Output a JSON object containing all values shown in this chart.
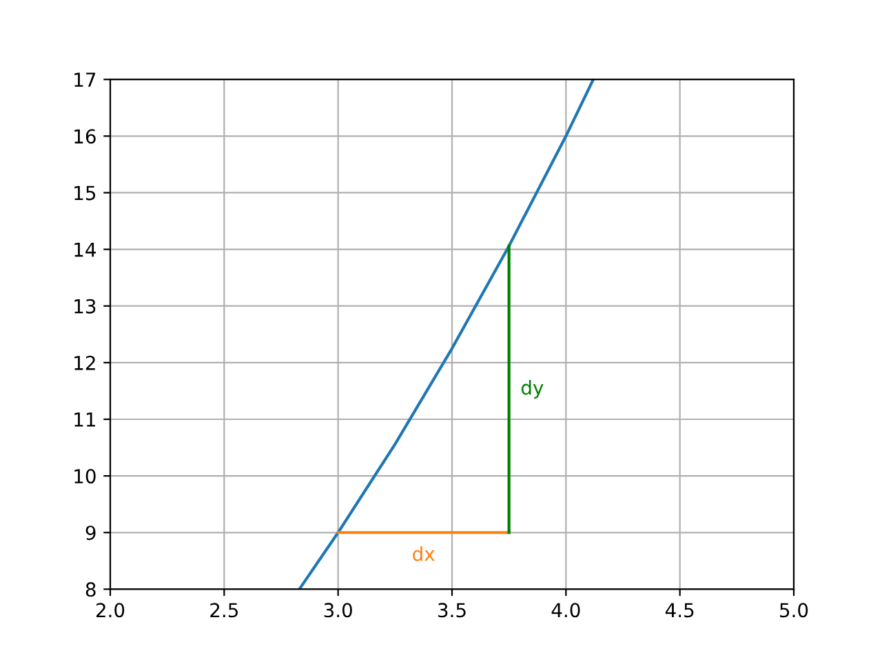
{
  "chart_data": {
    "type": "line",
    "series": [
      {
        "color": "#1f77b4",
        "x": [
          2.83,
          3.0,
          3.25,
          3.5,
          3.75,
          4.0,
          4.12
        ],
        "values": [
          8.0,
          9.0,
          10.56,
          12.25,
          14.06,
          16.0,
          17.0
        ]
      },
      {
        "color": "#ff7f0e",
        "x": [
          3.0,
          3.75
        ],
        "values": [
          9.0,
          9.0
        ]
      },
      {
        "color": "#008000",
        "x": [
          3.75,
          3.75
        ],
        "values": [
          9.0,
          14.06
        ]
      }
    ],
    "annotations": [
      {
        "text": "dx",
        "x": 3.375,
        "y": 9.0
      },
      {
        "text": "dy",
        "x": 3.75,
        "y": 11.53
      }
    ],
    "xlim": [
      2.0,
      5.0
    ],
    "ylim": [
      8,
      17
    ],
    "xticks": [
      {
        "value": 2.0,
        "label": "2.0"
      },
      {
        "value": 2.5,
        "label": "2.5"
      },
      {
        "value": 3.0,
        "label": "3.0"
      },
      {
        "value": 3.5,
        "label": "3.5"
      },
      {
        "value": 4.0,
        "label": "4.0"
      },
      {
        "value": 4.5,
        "label": "4.5"
      },
      {
        "value": 5.0,
        "label": "5.0"
      }
    ],
    "yticks": [
      8,
      9,
      10,
      11,
      12,
      13,
      14,
      15,
      16,
      17
    ],
    "grid": true
  }
}
